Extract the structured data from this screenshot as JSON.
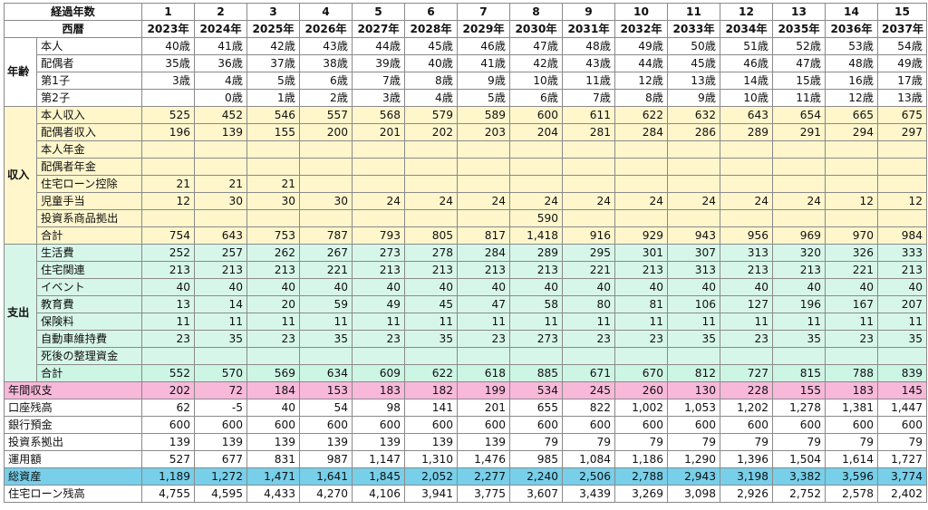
{
  "header": {
    "years_elapsed_label": "経過年数",
    "calendar_label": "西暦",
    "years_elapsed": [
      "1",
      "2",
      "3",
      "4",
      "5",
      "6",
      "7",
      "8",
      "9",
      "10",
      "11",
      "12",
      "13",
      "14",
      "15"
    ],
    "calendar_years": [
      "2023年",
      "2024年",
      "2025年",
      "2026年",
      "2027年",
      "2028年",
      "2029年",
      "2030年",
      "2031年",
      "2032年",
      "2033年",
      "2034年",
      "2035年",
      "2036年",
      "2037年"
    ]
  },
  "groups": [
    {
      "label": "年齢",
      "key": "age",
      "rows": [
        {
          "label": "本人",
          "values": [
            "40歳",
            "41歳",
            "42歳",
            "43歳",
            "44歳",
            "45歳",
            "46歳",
            "47歳",
            "48歳",
            "49歳",
            "50歳",
            "51歳",
            "52歳",
            "53歳",
            "54歳"
          ]
        },
        {
          "label": "配偶者",
          "values": [
            "35歳",
            "36歳",
            "37歳",
            "38歳",
            "39歳",
            "40歳",
            "41歳",
            "42歳",
            "43歳",
            "44歳",
            "45歳",
            "46歳",
            "47歳",
            "48歳",
            "49歳"
          ]
        },
        {
          "label": "第1子",
          "values": [
            "3歳",
            "4歳",
            "5歳",
            "6歳",
            "7歳",
            "8歳",
            "9歳",
            "10歳",
            "11歳",
            "12歳",
            "13歳",
            "14歳",
            "15歳",
            "16歳",
            "17歳"
          ]
        },
        {
          "label": "第2子",
          "values": [
            "",
            "0歳",
            "1歳",
            "2歳",
            "3歳",
            "4歳",
            "5歳",
            "6歳",
            "7歳",
            "8歳",
            "9歳",
            "10歳",
            "11歳",
            "12歳",
            "13歳"
          ]
        }
      ]
    },
    {
      "label": "収入",
      "key": "income",
      "rows": [
        {
          "label": "本人収入",
          "values": [
            "525",
            "452",
            "546",
            "557",
            "568",
            "579",
            "589",
            "600",
            "611",
            "622",
            "632",
            "643",
            "654",
            "665",
            "675"
          ]
        },
        {
          "label": "配偶者収入",
          "values": [
            "196",
            "139",
            "155",
            "200",
            "201",
            "202",
            "203",
            "204",
            "281",
            "284",
            "286",
            "289",
            "291",
            "294",
            "297"
          ]
        },
        {
          "label": "本人年金",
          "values": [
            "",
            "",
            "",
            "",
            "",
            "",
            "",
            "",
            "",
            "",
            "",
            "",
            "",
            "",
            ""
          ]
        },
        {
          "label": "配偶者年金",
          "values": [
            "",
            "",
            "",
            "",
            "",
            "",
            "",
            "",
            "",
            "",
            "",
            "",
            "",
            "",
            ""
          ]
        },
        {
          "label": "住宅ローン控除",
          "values": [
            "21",
            "21",
            "21",
            "",
            "",
            "",
            "",
            "",
            "",
            "",
            "",
            "",
            "",
            "",
            ""
          ]
        },
        {
          "label": "児童手当",
          "values": [
            "12",
            "30",
            "30",
            "30",
            "24",
            "24",
            "24",
            "24",
            "24",
            "24",
            "24",
            "24",
            "24",
            "12",
            "12"
          ]
        },
        {
          "label": "投資系商品拠出",
          "values": [
            "",
            "",
            "",
            "",
            "",
            "",
            "",
            "590",
            "",
            "",
            "",
            "",
            "",
            "",
            ""
          ]
        },
        {
          "label": "合計",
          "total": true,
          "values": [
            "754",
            "643",
            "753",
            "787",
            "793",
            "805",
            "817",
            "1,418",
            "916",
            "929",
            "943",
            "956",
            "969",
            "970",
            "984"
          ]
        }
      ]
    },
    {
      "label": "支出",
      "key": "expense",
      "rows": [
        {
          "label": "生活費",
          "values": [
            "252",
            "257",
            "262",
            "267",
            "273",
            "278",
            "284",
            "289",
            "295",
            "301",
            "307",
            "313",
            "320",
            "326",
            "333"
          ]
        },
        {
          "label": "住宅関連",
          "values": [
            "213",
            "213",
            "213",
            "221",
            "213",
            "213",
            "213",
            "213",
            "221",
            "213",
            "313",
            "213",
            "213",
            "221",
            "213"
          ]
        },
        {
          "label": "イベント",
          "values": [
            "40",
            "40",
            "40",
            "40",
            "40",
            "40",
            "40",
            "40",
            "40",
            "40",
            "40",
            "40",
            "40",
            "40",
            "40"
          ]
        },
        {
          "label": "教育費",
          "values": [
            "13",
            "14",
            "20",
            "59",
            "49",
            "45",
            "47",
            "58",
            "80",
            "81",
            "106",
            "127",
            "196",
            "167",
            "207"
          ]
        },
        {
          "label": "保険料",
          "values": [
            "11",
            "11",
            "11",
            "11",
            "11",
            "11",
            "11",
            "11",
            "11",
            "11",
            "11",
            "11",
            "11",
            "11",
            "11"
          ]
        },
        {
          "label": "自動車維持費",
          "values": [
            "23",
            "35",
            "23",
            "35",
            "23",
            "35",
            "23",
            "273",
            "23",
            "23",
            "35",
            "23",
            "35",
            "23",
            "35"
          ]
        },
        {
          "label": "死後の整理資金",
          "values": [
            "",
            "",
            "",
            "",
            "",
            "",
            "",
            "",
            "",
            "",
            "",
            "",
            "",
            "",
            ""
          ]
        },
        {
          "label": "合計",
          "total": true,
          "values": [
            "552",
            "570",
            "569",
            "634",
            "609",
            "622",
            "618",
            "885",
            "671",
            "670",
            "812",
            "727",
            "815",
            "788",
            "839"
          ]
        }
      ]
    }
  ],
  "footer_rows": [
    {
      "label": "年間収支",
      "style": "balance",
      "values": [
        "202",
        "72",
        "184",
        "153",
        "183",
        "182",
        "199",
        "534",
        "245",
        "260",
        "130",
        "228",
        "155",
        "183",
        "145"
      ]
    },
    {
      "label": "口座残高",
      "style": "plain",
      "values": [
        "62",
        "-5",
        "40",
        "54",
        "98",
        "141",
        "201",
        "655",
        "822",
        "1,002",
        "1,053",
        "1,202",
        "1,278",
        "1,381",
        "1,447"
      ]
    },
    {
      "label": "銀行預金",
      "style": "plain",
      "values": [
        "600",
        "600",
        "600",
        "600",
        "600",
        "600",
        "600",
        "600",
        "600",
        "600",
        "600",
        "600",
        "600",
        "600",
        "600"
      ]
    },
    {
      "label": "投資系拠出",
      "style": "plain",
      "values": [
        "139",
        "139",
        "139",
        "139",
        "139",
        "139",
        "139",
        "79",
        "79",
        "79",
        "79",
        "79",
        "79",
        "79",
        "79"
      ]
    },
    {
      "label": "運用額",
      "style": "plain",
      "values": [
        "527",
        "677",
        "831",
        "987",
        "1,147",
        "1,310",
        "1,476",
        "985",
        "1,084",
        "1,186",
        "1,290",
        "1,396",
        "1,504",
        "1,614",
        "1,727"
      ]
    },
    {
      "label": "総資産",
      "style": "assets",
      "values": [
        "1,189",
        "1,272",
        "1,471",
        "1,641",
        "1,845",
        "2,052",
        "2,277",
        "2,240",
        "2,506",
        "2,788",
        "2,943",
        "3,198",
        "3,382",
        "3,596",
        "3,774"
      ]
    },
    {
      "label": "住宅ローン残高",
      "style": "plain",
      "values": [
        "4,755",
        "4,595",
        "4,433",
        "4,270",
        "4,106",
        "3,941",
        "3,775",
        "3,607",
        "3,439",
        "3,269",
        "3,098",
        "2,926",
        "2,752",
        "2,578",
        "2,402"
      ]
    }
  ],
  "colors": {
    "income_bg": "#fff6cc",
    "expense_bg": "#d7f6ea",
    "balance_bg": "#f8b8da",
    "assets_bg": "#77cfe9"
  }
}
